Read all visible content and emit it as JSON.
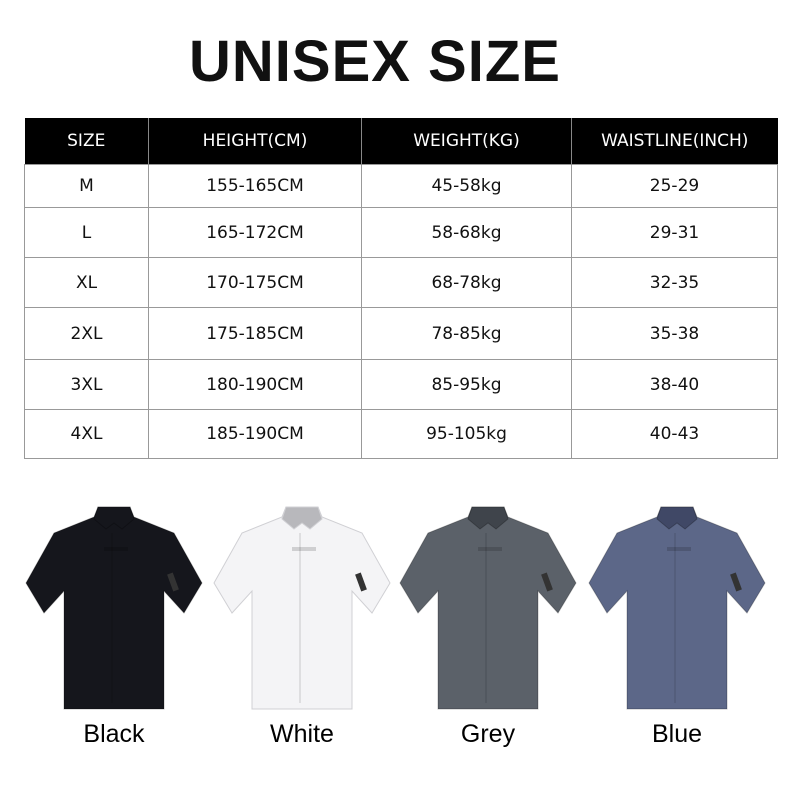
{
  "title": "UNISEX SIZE",
  "table": {
    "headers": [
      "SIZE",
      "HEIGHT(CM)",
      "WEIGHT(KG)",
      "WAISTLINE(INCH)"
    ],
    "rows": [
      [
        "M",
        "155-165CM",
        "45-58kg",
        "25-29"
      ],
      [
        "L",
        "165-172CM",
        "58-68kg",
        "29-31"
      ],
      [
        "XL",
        "170-175CM",
        "68-78kg",
        "32-35"
      ],
      [
        "2XL",
        "175-185CM",
        "78-85kg",
        "35-38"
      ],
      [
        "3XL",
        "180-190CM",
        "85-95kg",
        "38-40"
      ],
      [
        "4XL",
        "185-190CM",
        "95-105kg",
        "40-43"
      ]
    ]
  },
  "colors": [
    {
      "label": "Black",
      "hex": "#15161c",
      "collar": "#15161c"
    },
    {
      "label": "White",
      "hex": "#f4f4f6",
      "collar": "#b8b8bc"
    },
    {
      "label": "Grey",
      "hex": "#5b6169",
      "collar": "#3f444b"
    },
    {
      "label": "Blue",
      "hex": "#5c6788",
      "collar": "#404866"
    }
  ]
}
